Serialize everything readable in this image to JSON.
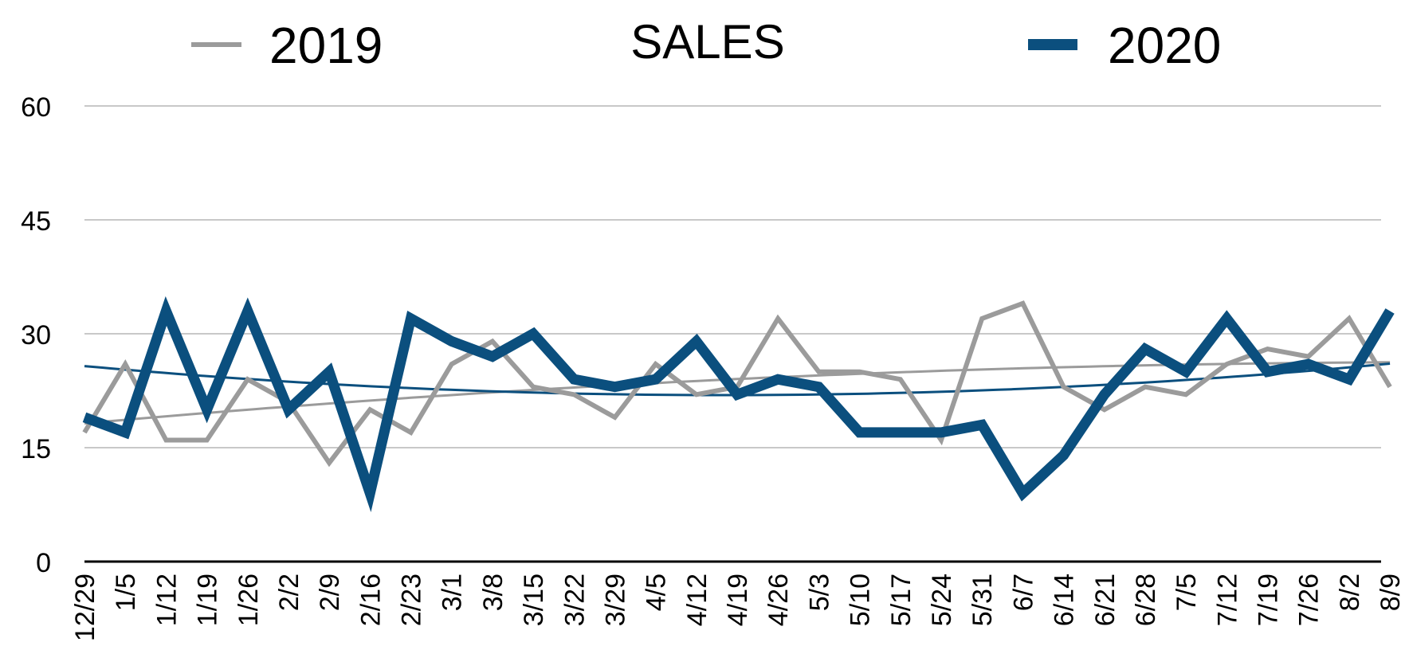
{
  "chart_data": {
    "type": "line",
    "title": "SALES",
    "xlabel": "",
    "ylabel": "",
    "ylim": [
      0,
      60
    ],
    "yticks": [
      "0",
      "15",
      "30",
      "45",
      "60"
    ],
    "grid": true,
    "legend_position": "top",
    "categories": [
      "12/29",
      "1/5",
      "1/12",
      "1/19",
      "1/26",
      "2/2",
      "2/9",
      "2/16",
      "2/23",
      "3/1",
      "3/8",
      "3/15",
      "3/22",
      "3/29",
      "4/5",
      "4/12",
      "4/19",
      "4/26",
      "5/3",
      "5/10",
      "5/17",
      "5/24",
      "5/31",
      "6/7",
      "6/14",
      "6/21",
      "6/28",
      "7/5",
      "7/12",
      "7/19",
      "7/26",
      "8/2",
      "8/9"
    ],
    "series": [
      {
        "name": "2019",
        "color": "#9b9b9b",
        "values": [
          17,
          26,
          16,
          16,
          24,
          21,
          13,
          20,
          17,
          26,
          29,
          23,
          22,
          19,
          26,
          22,
          23,
          32,
          25,
          25,
          24,
          16,
          32,
          34,
          23,
          20,
          23,
          22,
          26,
          28,
          27,
          32,
          23
        ]
      },
      {
        "name": "2020",
        "color": "#0b4f7e",
        "values": [
          19,
          17,
          33,
          20,
          33,
          20,
          25,
          9,
          32,
          29,
          27,
          30,
          24,
          23,
          24,
          29,
          22,
          24,
          23,
          17,
          17,
          17,
          18,
          9,
          14,
          22,
          28,
          25,
          32,
          25,
          26,
          24,
          33
        ]
      }
    ],
    "trendlines": [
      {
        "series": "2019",
        "color": "#9b9b9b"
      },
      {
        "series": "2020",
        "color": "#0b4f7e"
      }
    ]
  }
}
